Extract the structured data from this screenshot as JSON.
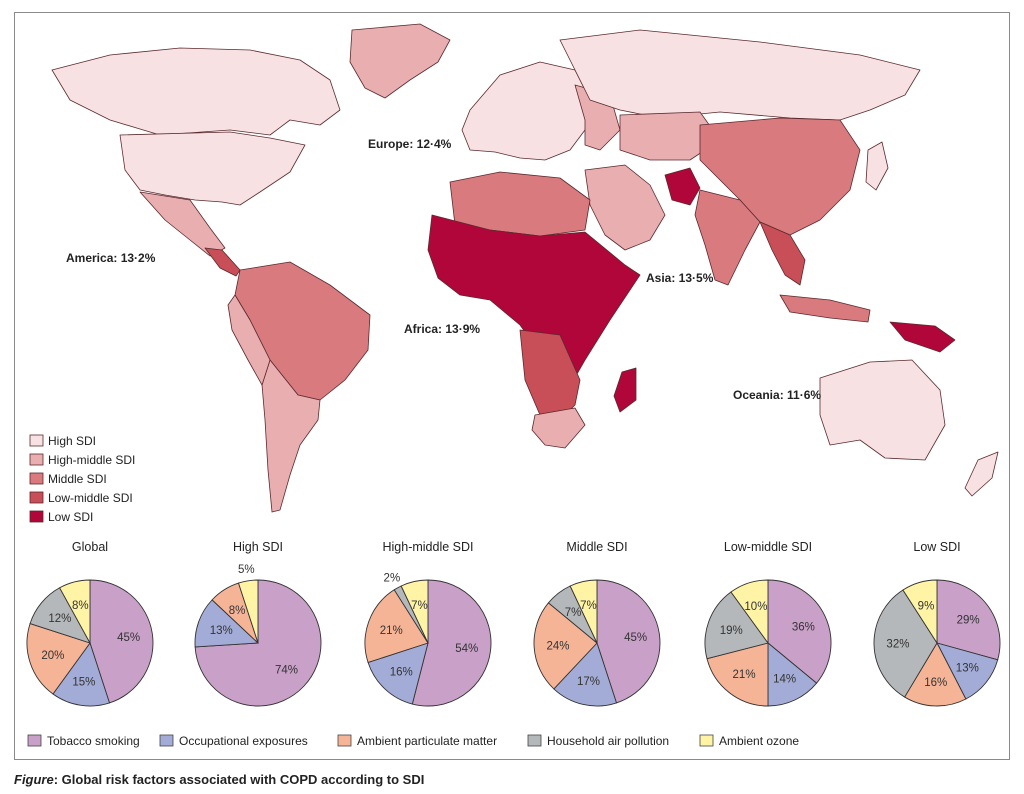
{
  "map": {
    "legend": [
      {
        "label": "High SDI",
        "color": "#f7e1e3"
      },
      {
        "label": "High-middle SDI",
        "color": "#e9aeb0"
      },
      {
        "label": "Middle SDI",
        "color": "#d97a7e"
      },
      {
        "label": "Low-middle SDI",
        "color": "#c84e58"
      },
      {
        "label": "Low SDI",
        "color": "#b0063a"
      }
    ],
    "regions": [
      {
        "label": "America: 13·2%"
      },
      {
        "label": "Europe: 12·4%"
      },
      {
        "label": "Asia: 13·5%"
      },
      {
        "label": "Africa: 13·9%"
      },
      {
        "label": "Oceania: 11·6%"
      }
    ]
  },
  "chart_data": {
    "type": "pie",
    "categories": [
      "Tobacco smoking",
      "Occupational exposures",
      "Ambient particulate matter",
      "Household air pollution",
      "Ambient ozone"
    ],
    "colors": [
      "#c8a0c8",
      "#a3acd6",
      "#f6b497",
      "#b5b8ba",
      "#fff3a6"
    ],
    "pies": [
      {
        "title": "Global",
        "values": [
          45,
          15,
          20,
          12,
          8
        ]
      },
      {
        "title": "High SDI",
        "values": [
          74,
          13,
          8,
          0,
          5
        ]
      },
      {
        "title": "High-middle SDI",
        "values": [
          54,
          16,
          21,
          2,
          7
        ]
      },
      {
        "title": "Middle SDI",
        "values": [
          45,
          17,
          24,
          7,
          7
        ]
      },
      {
        "title": "Low-middle SDI",
        "values": [
          36,
          14,
          21,
          19,
          10
        ]
      },
      {
        "title": "Low SDI",
        "values": [
          29,
          13,
          16,
          32,
          9
        ]
      }
    ]
  },
  "caption": {
    "label": "Figure",
    "text": ": Global risk factors associated with COPD according to SDI"
  }
}
